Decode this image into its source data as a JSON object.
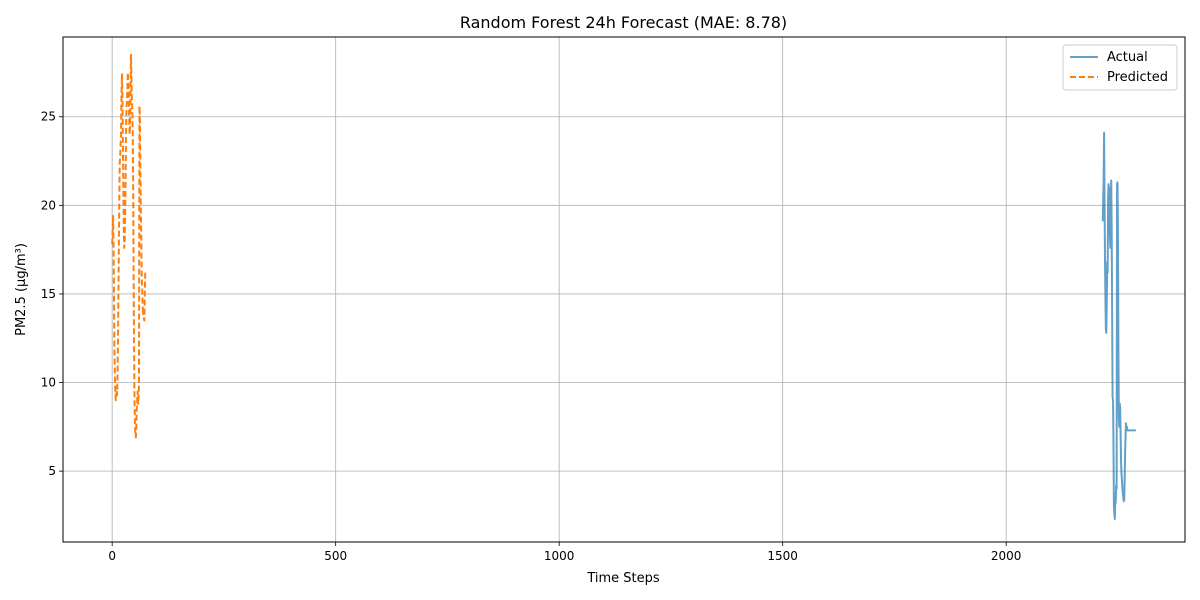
{
  "chart_data": {
    "type": "line",
    "title": "Random Forest 24h Forecast (MAE: 8.78)",
    "xlabel": "Time Steps",
    "ylabel": "PM2.5 (µg/m³)",
    "xlim": [
      -110,
      2400
    ],
    "ylim": [
      1.0,
      29.5
    ],
    "xticks": [
      0,
      500,
      1000,
      1500,
      2000
    ],
    "yticks": [
      5,
      10,
      15,
      20,
      25
    ],
    "grid": true,
    "legend_position": "top-right",
    "series": [
      {
        "name": "Actual",
        "color": "#1f77b4",
        "style": "solid",
        "x": [
          2216,
          2218,
          2219,
          2220,
          2221,
          2222,
          2223,
          2224,
          2225,
          2226,
          2227,
          2228,
          2229,
          2230,
          2231,
          2232,
          2233,
          2234,
          2235,
          2236,
          2237,
          2238,
          2239,
          2240,
          2241,
          2242,
          2243,
          2244,
          2245,
          2246,
          2247,
          2248,
          2249,
          2250,
          2251,
          2252,
          2253,
          2254,
          2255,
          2256,
          2257,
          2258,
          2259,
          2260,
          2261,
          2262,
          2263,
          2264,
          2265,
          2266,
          2267,
          2268,
          2269,
          2270,
          2271,
          2272,
          2273,
          2274,
          2275,
          2276,
          2277,
          2278,
          2279,
          2280,
          2281,
          2282,
          2285,
          2290
        ],
        "y": [
          19.1,
          21.5,
          24.1,
          20.5,
          17.0,
          14.8,
          13.0,
          12.8,
          14.5,
          16.8,
          16.2,
          20.5,
          21.2,
          19.5,
          21.0,
          18.3,
          17.6,
          20.0,
          21.4,
          18.5,
          14.0,
          9.2,
          9.0,
          6.5,
          3.0,
          2.6,
          2.3,
          3.5,
          3.2,
          4.2,
          4.0,
          21.2,
          21.3,
          18.5,
          12.0,
          8.0,
          7.5,
          8.8,
          8.6,
          7.0,
          5.5,
          4.8,
          4.5,
          4.0,
          3.7,
          3.5,
          3.3,
          3.4,
          4.5,
          6.0,
          7.0,
          7.7,
          7.4,
          7.5,
          7.3,
          7.3,
          7.3,
          7.3,
          7.3,
          7.3,
          7.3,
          7.3,
          7.3,
          7.3,
          7.3,
          7.3,
          7.3,
          7.3
        ]
      },
      {
        "name": "Predicted",
        "color": "#ff7f0e",
        "style": "dashed",
        "x": [
          0,
          1,
          2,
          3,
          4,
          5,
          6,
          7,
          8,
          9,
          10,
          11,
          12,
          13,
          14,
          15,
          16,
          17,
          18,
          19,
          20,
          21,
          22,
          23,
          24,
          25,
          26,
          27,
          28,
          29,
          30,
          31,
          32,
          33,
          34,
          35,
          36,
          37,
          38,
          39,
          40,
          41,
          42,
          43,
          44,
          45,
          46,
          47,
          48,
          49,
          50,
          51,
          52,
          53,
          54,
          55,
          56,
          57,
          58,
          59,
          60,
          61,
          62,
          63,
          64,
          65,
          66,
          67,
          68,
          69,
          70,
          71,
          72,
          73,
          74
        ],
        "y": [
          17.8,
          18.5,
          19.4,
          18.0,
          15.0,
          12.0,
          10.5,
          9.5,
          9.0,
          9.2,
          9.6,
          9.3,
          10.5,
          12.5,
          15.0,
          18.0,
          20.5,
          22.5,
          22.8,
          23.5,
          24.4,
          26.5,
          27.4,
          26.0,
          23.5,
          21.0,
          18.5,
          17.6,
          18.0,
          19.5,
          21.5,
          24.0,
          25.5,
          25.8,
          26.5,
          27.5,
          27.0,
          26.5,
          25.0,
          24.0,
          24.5,
          26.0,
          28.5,
          27.5,
          26.0,
          25.5,
          24.3,
          21.0,
          16.0,
          12.0,
          9.0,
          7.5,
          7.0,
          6.9,
          7.5,
          8.5,
          9.0,
          9.5,
          8.8,
          9.2,
          9.8,
          25.6,
          25.0,
          22.0,
          20.0,
          18.5,
          16.0,
          15.5,
          14.5,
          13.8,
          14.0,
          13.6,
          13.5,
          15.0,
          16.2
        ]
      }
    ]
  }
}
